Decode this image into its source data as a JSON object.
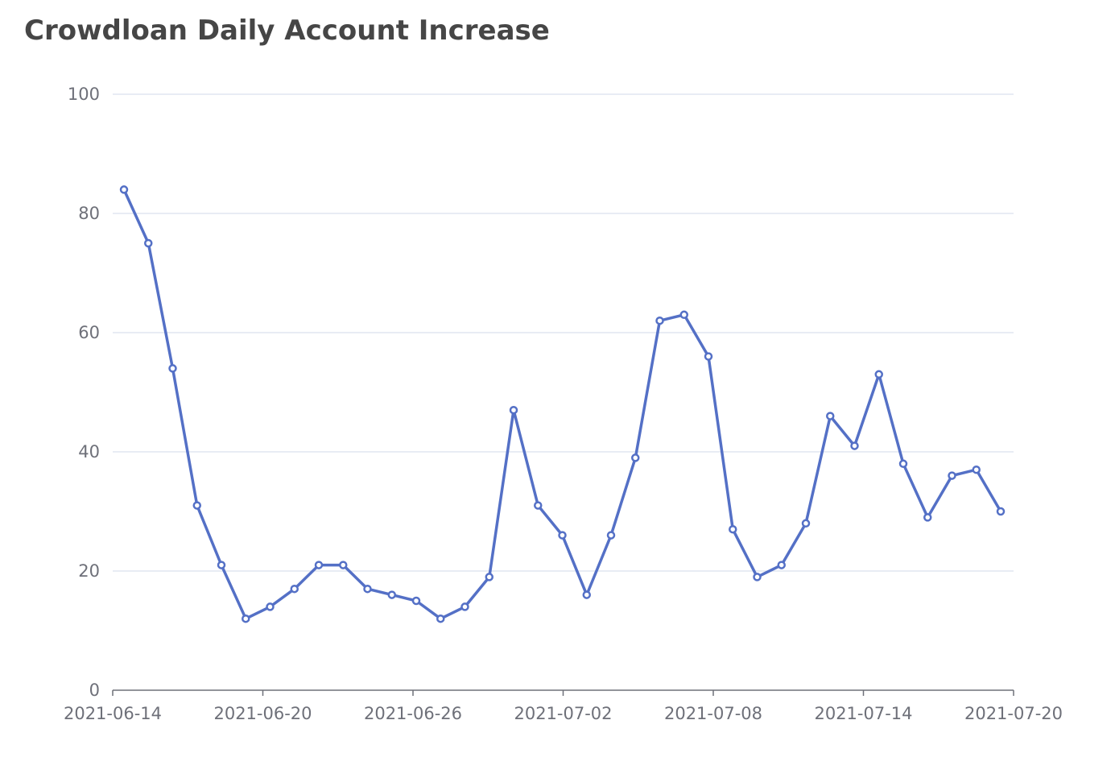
{
  "title": "Crowdloan Daily Account Increase",
  "colors": {
    "series": "#5470c6",
    "grid": "#e0e6f1",
    "axis": "#6e7079",
    "title": "#464646"
  },
  "chart_data": {
    "type": "line",
    "title": "Crowdloan Daily Account Increase",
    "xlabel": "",
    "ylabel": "",
    "x_start": "2021-06-14",
    "x_ticks": [
      "2021-06-14",
      "2021-06-20",
      "2021-06-26",
      "2021-07-02",
      "2021-07-08",
      "2021-07-14",
      "2021-07-20"
    ],
    "y_ticks": [
      0,
      20,
      40,
      60,
      80,
      100
    ],
    "ylim": [
      0,
      100
    ],
    "xlim": [
      "2021-06-14",
      "2021-07-20"
    ],
    "grid": true,
    "legend": "none",
    "series": [
      {
        "x": [
          "2021-06-14",
          "2021-06-15",
          "2021-06-16",
          "2021-06-17",
          "2021-06-18",
          "2021-06-19",
          "2021-06-20",
          "2021-06-21",
          "2021-06-22",
          "2021-06-23",
          "2021-06-24",
          "2021-06-25",
          "2021-06-26",
          "2021-06-27",
          "2021-06-28",
          "2021-06-29",
          "2021-06-30",
          "2021-07-01",
          "2021-07-02",
          "2021-07-03",
          "2021-07-04",
          "2021-07-05",
          "2021-07-06",
          "2021-07-07",
          "2021-07-08",
          "2021-07-09",
          "2021-07-10",
          "2021-07-11",
          "2021-07-12",
          "2021-07-13",
          "2021-07-14",
          "2021-07-15",
          "2021-07-16",
          "2021-07-17",
          "2021-07-18",
          "2021-07-19",
          "2021-07-20"
        ],
        "values": [
          84,
          75,
          54,
          31,
          21,
          12,
          14,
          17,
          21,
          21,
          17,
          16,
          15,
          12,
          14,
          19,
          47,
          31,
          26,
          16,
          26,
          39,
          62,
          63,
          56,
          27,
          19,
          21,
          28,
          46,
          41,
          53,
          38,
          29,
          36,
          37,
          30
        ]
      }
    ]
  }
}
